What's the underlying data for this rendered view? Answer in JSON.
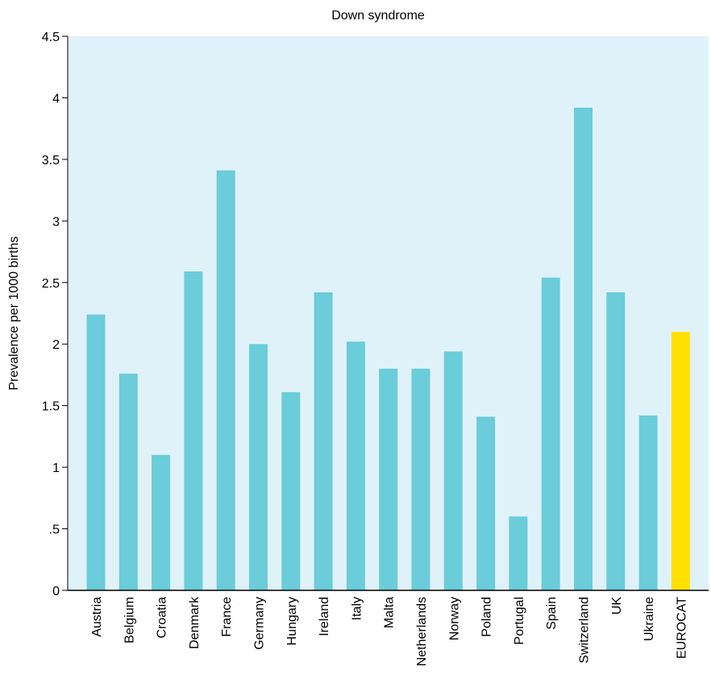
{
  "chart_data": {
    "type": "bar",
    "title": "Down syndrome",
    "xlabel": "",
    "ylabel": "Prevalence per 1000 births",
    "ylim": [
      0,
      4.5
    ],
    "yticks": [
      "0",
      ".5",
      "1",
      "1.5",
      "2",
      "2.5",
      "3",
      "3.5",
      "4",
      "4.5"
    ],
    "categories": [
      "Austria",
      "Belgium",
      "Croatia",
      "Denmark",
      "France",
      "Germany",
      "Hungary",
      "Ireland",
      "Italy",
      "Malta",
      "Netherlands",
      "Norway",
      "Poland",
      "Portugal",
      "Spain",
      "Switzerland",
      "UK",
      "Ukraine",
      "EUROCAT"
    ],
    "values": [
      2.24,
      1.76,
      1.1,
      2.59,
      3.41,
      2.0,
      1.61,
      2.42,
      2.02,
      1.8,
      1.8,
      1.94,
      1.41,
      0.6,
      2.54,
      3.92,
      2.42,
      1.42,
      2.1
    ],
    "colors": {
      "bar": "#6bccda",
      "highlight_bar": "#ffe100",
      "plot_background": "#e0f2f9",
      "axis": "#000000"
    },
    "highlight_category": "EUROCAT",
    "grid": false
  }
}
